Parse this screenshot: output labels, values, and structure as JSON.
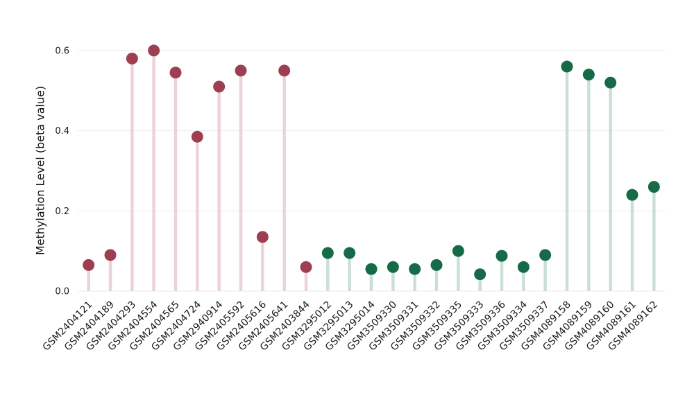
{
  "chart_data": {
    "type": "lollipop",
    "title": "",
    "ylabel": "Methylation Level (beta value)",
    "xlabel": "",
    "ylim": [
      0,
      0.65
    ],
    "yticks": [
      "0.0",
      "0.2",
      "0.4",
      "0.6"
    ],
    "grid": true,
    "legend": "none",
    "categories": [
      "GSM2404121",
      "GSM2404189",
      "GSM2404293",
      "GSM2404554",
      "GSM2404565",
      "GSM2404724",
      "GSM2940914",
      "GSM2405592",
      "GSM2405616",
      "GSM2405641",
      "GSM2403844",
      "GSM3295012",
      "GSM3295013",
      "GSM3295014",
      "GSM3509330",
      "GSM3509331",
      "GSM3509332",
      "GSM3509335",
      "GSM3509333",
      "GSM3509336",
      "GSM3509334",
      "GSM3509337",
      "GSM4089158",
      "GSM4089159",
      "GSM4089160",
      "GSM4089161",
      "GSM4089162"
    ],
    "values": [
      0.065,
      0.09,
      0.58,
      0.6,
      0.545,
      0.385,
      0.51,
      0.55,
      0.135,
      0.55,
      0.06,
      0.095,
      0.095,
      0.055,
      0.06,
      0.055,
      0.065,
      0.1,
      0.042,
      0.088,
      0.06,
      0.09,
      0.56,
      0.54,
      0.52,
      0.24,
      0.26
    ],
    "point_groups": [
      0,
      0,
      0,
      0,
      0,
      0,
      0,
      0,
      0,
      0,
      0,
      1,
      1,
      1,
      1,
      1,
      1,
      1,
      1,
      1,
      1,
      1,
      1,
      1,
      1,
      1,
      1
    ],
    "group_styles": [
      {
        "dot": "#9d3f50",
        "stem": "#edd3d8"
      },
      {
        "dot": "#176a47",
        "stem": "#cadfd5"
      }
    ],
    "colors": {
      "grid": "#ebebeb",
      "axis_text": "#1a1a1a",
      "background": "#ffffff"
    }
  }
}
